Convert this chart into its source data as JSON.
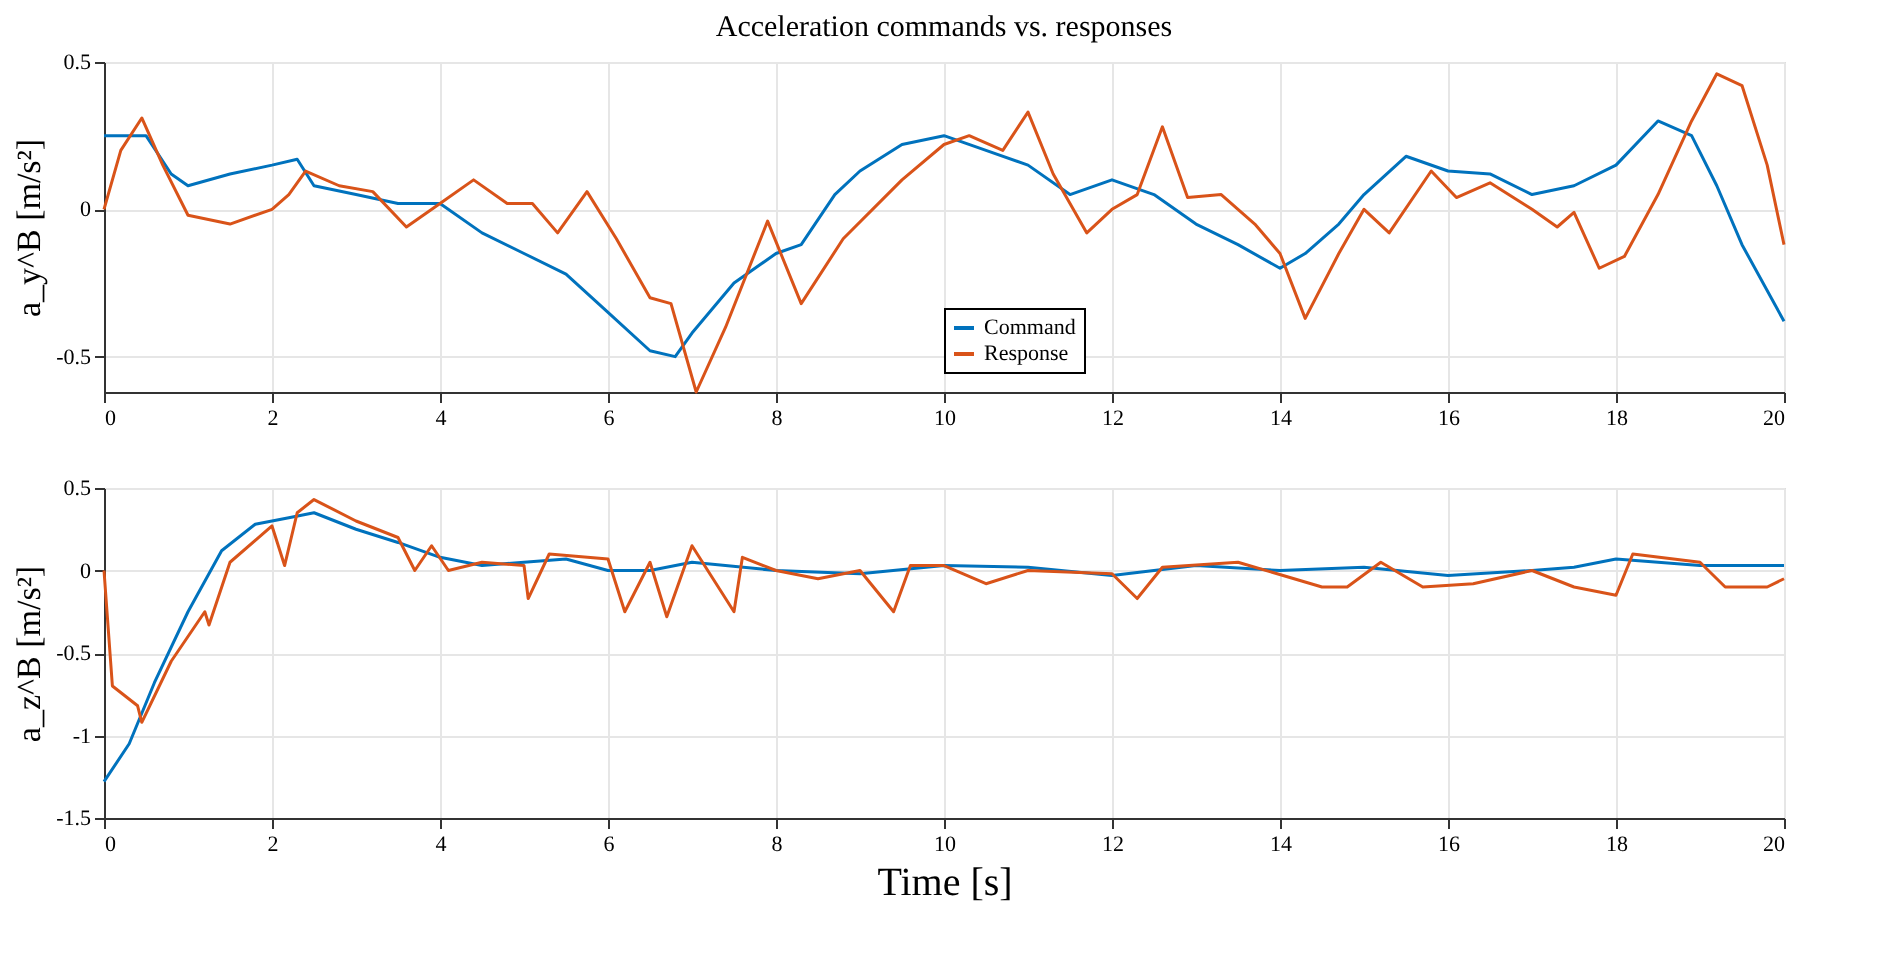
{
  "chart_data": [
    {
      "type": "line",
      "title": "Acceleration commands vs. responses",
      "ylabel": "a_y^B [m/s²]",
      "xlim": [
        0,
        20
      ],
      "xticks": [
        0,
        2,
        4,
        6,
        8,
        10,
        12,
        14,
        16,
        18,
        20
      ],
      "ylim": [
        -0.62,
        0.5
      ],
      "yticks": [
        -0.5,
        0,
        0.5
      ],
      "grid": true,
      "legend": "bottom",
      "series": [
        {
          "name": "Command",
          "color": "#0072bd",
          "x": [
            0,
            0.5,
            0.8,
            1,
            1.5,
            2,
            2.3,
            2.5,
            3,
            3.5,
            4,
            4.5,
            5,
            5.5,
            6,
            6.5,
            6.8,
            7,
            7.5,
            8,
            8.3,
            8.7,
            9,
            9.5,
            10,
            10.5,
            11,
            11.5,
            12,
            12.5,
            13,
            13.5,
            14,
            14.3,
            14.7,
            15,
            15.5,
            16,
            16.5,
            17,
            17.5,
            18,
            18.5,
            18.9,
            19.2,
            19.5,
            20
          ],
          "values": [
            0.25,
            0.25,
            0.12,
            0.08,
            0.12,
            0.15,
            0.17,
            0.08,
            0.05,
            0.02,
            0.02,
            -0.08,
            -0.15,
            -0.22,
            -0.35,
            -0.48,
            -0.5,
            -0.42,
            -0.25,
            -0.15,
            -0.12,
            0.05,
            0.13,
            0.22,
            0.25,
            0.2,
            0.15,
            0.05,
            0.1,
            0.05,
            -0.05,
            -0.12,
            -0.2,
            -0.15,
            -0.05,
            0.05,
            0.18,
            0.13,
            0.12,
            0.05,
            0.08,
            0.15,
            0.3,
            0.25,
            0.08,
            -0.12,
            -0.38
          ]
        },
        {
          "name": "Response",
          "color": "#d95319",
          "x": [
            0,
            0.2,
            0.45,
            0.7,
            1,
            1.5,
            2,
            2.2,
            2.4,
            2.8,
            3.2,
            3.6,
            4,
            4.4,
            4.8,
            5.1,
            5.4,
            5.75,
            6.1,
            6.5,
            6.75,
            7.05,
            7.4,
            7.9,
            8.3,
            8.8,
            9.5,
            10,
            10.3,
            10.7,
            11,
            11.3,
            11.7,
            12,
            12.3,
            12.6,
            12.9,
            13.3,
            13.7,
            14,
            14.3,
            14.7,
            15,
            15.3,
            15.8,
            16.1,
            16.5,
            17,
            17.3,
            17.5,
            17.8,
            18.1,
            18.5,
            18.9,
            19.2,
            19.5,
            19.8,
            20
          ],
          "values": [
            0,
            0.2,
            0.31,
            0.15,
            -0.02,
            -0.05,
            0,
            0.05,
            0.13,
            0.08,
            0.06,
            -0.06,
            0.02,
            0.1,
            0.02,
            0.02,
            -0.08,
            0.06,
            -0.1,
            -0.3,
            -0.32,
            -0.62,
            -0.4,
            -0.04,
            -0.32,
            -0.1,
            0.1,
            0.22,
            0.25,
            0.2,
            0.33,
            0.12,
            -0.08,
            0,
            0.05,
            0.28,
            0.04,
            0.05,
            -0.05,
            -0.15,
            -0.37,
            -0.15,
            0,
            -0.08,
            0.13,
            0.04,
            0.09,
            0,
            -0.06,
            -0.01,
            -0.2,
            -0.16,
            0.05,
            0.3,
            0.46,
            0.42,
            0.15,
            -0.12
          ]
        }
      ]
    },
    {
      "type": "line",
      "xlabel": "Time [s]",
      "ylabel": "a_z^B [m/s²]",
      "xlim": [
        0,
        20
      ],
      "xticks": [
        0,
        2,
        4,
        6,
        8,
        10,
        12,
        14,
        16,
        18,
        20
      ],
      "ylim": [
        -1.5,
        0.5
      ],
      "yticks": [
        -1.5,
        -1,
        -0.5,
        0,
        0.5
      ],
      "grid": true,
      "series": [
        {
          "color": "#0072bd",
          "x": [
            0,
            0.3,
            0.6,
            1,
            1.4,
            1.8,
            2.2,
            2.5,
            3,
            3.5,
            4,
            4.5,
            5,
            5.5,
            6,
            6.5,
            7,
            8,
            9,
            10,
            11,
            12,
            13,
            14,
            15,
            16,
            17,
            17.5,
            18,
            19,
            20
          ],
          "values": [
            -1.28,
            -1.05,
            -0.68,
            -0.25,
            0.12,
            0.28,
            0.32,
            0.35,
            0.25,
            0.17,
            0.08,
            0.03,
            0.05,
            0.07,
            0,
            0,
            0.05,
            0,
            -0.02,
            0.03,
            0.02,
            -0.03,
            0.03,
            0,
            0.02,
            -0.03,
            0,
            0.02,
            0.07,
            0.03,
            0.03
          ]
        },
        {
          "color": "#d95319",
          "x": [
            0,
            0.1,
            0.4,
            0.45,
            0.8,
            1.2,
            1.25,
            1.5,
            2,
            2.15,
            2.3,
            2.5,
            3,
            3.5,
            3.7,
            3.9,
            4.1,
            4.5,
            5,
            5.05,
            5.3,
            6,
            6.2,
            6.5,
            6.7,
            7,
            7.5,
            7.6,
            8,
            8.5,
            9,
            9.4,
            9.6,
            10,
            10.5,
            11,
            12,
            12.3,
            12.6,
            13.5,
            14.5,
            14.8,
            15.2,
            15.7,
            16.3,
            17,
            17.5,
            18,
            18.2,
            19,
            19.3,
            19.8,
            20
          ],
          "values": [
            0,
            -0.7,
            -0.82,
            -0.92,
            -0.55,
            -0.25,
            -0.33,
            0.05,
            0.27,
            0.03,
            0.35,
            0.43,
            0.3,
            0.2,
            0,
            0.15,
            0,
            0.05,
            0.03,
            -0.17,
            0.1,
            0.07,
            -0.25,
            0.05,
            -0.28,
            0.15,
            -0.25,
            0.08,
            0,
            -0.05,
            0,
            -0.25,
            0.03,
            0.03,
            -0.08,
            0,
            -0.02,
            -0.17,
            0.02,
            0.05,
            -0.1,
            -0.1,
            0.05,
            -0.1,
            -0.08,
            0,
            -0.1,
            -0.15,
            0.1,
            0.05,
            -0.1,
            -0.1,
            -0.05
          ]
        }
      ]
    }
  ]
}
